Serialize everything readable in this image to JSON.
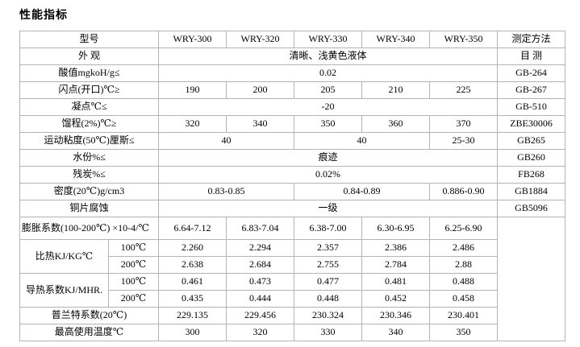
{
  "page": {
    "title": "性能指标"
  },
  "colors": {
    "background": "#ffffff",
    "border": "#b4b4b4",
    "text": "#000000"
  },
  "table": {
    "rows": [
      {
        "name": "header-row",
        "header": true,
        "cells": [
          {
            "t": "型号",
            "cs": 2,
            "n": "col-header-model"
          },
          {
            "t": "WRY-300",
            "n": "col-header-wry-300"
          },
          {
            "t": "WRY-320",
            "n": "col-header-wry-320"
          },
          {
            "t": "WRY-330",
            "n": "col-header-wry-330"
          },
          {
            "t": "WRY-340",
            "n": "col-header-wry-340"
          },
          {
            "t": "WRY-350",
            "n": "col-header-wry-350"
          },
          {
            "t": "测定方法",
            "n": "col-header-test-method"
          }
        ]
      },
      {
        "name": "row-appearance",
        "cells": [
          {
            "t": "外 观",
            "cs": 2,
            "n": "row-label-appearance"
          },
          {
            "t": "清晰、浅黄色液体",
            "cs": 5,
            "n": "value-cell"
          },
          {
            "t": "目 测",
            "n": "method-cell"
          }
        ]
      },
      {
        "name": "row-acid-value",
        "cells": [
          {
            "t": "酸值mgkoH/g≤",
            "cs": 2,
            "n": "row-label-acid-value"
          },
          {
            "t": "0.02",
            "cs": 5,
            "n": "value-cell"
          },
          {
            "t": "GB-264",
            "n": "method-cell"
          }
        ]
      },
      {
        "name": "row-flash-point",
        "cells": [
          {
            "t": "闪点(开口)℃≥",
            "cs": 2,
            "n": "row-label-flash-point"
          },
          {
            "t": "190",
            "n": "value-cell"
          },
          {
            "t": "200",
            "n": "value-cell"
          },
          {
            "t": "205",
            "n": "value-cell"
          },
          {
            "t": "210",
            "n": "value-cell"
          },
          {
            "t": "225",
            "n": "value-cell"
          },
          {
            "t": "GB-267",
            "n": "method-cell"
          }
        ]
      },
      {
        "name": "row-pour-point",
        "cells": [
          {
            "t": "凝点℃≤",
            "cs": 2,
            "n": "row-label-pour-point"
          },
          {
            "t": "-20",
            "cs": 5,
            "n": "value-cell"
          },
          {
            "t": "GB-510",
            "n": "method-cell"
          }
        ]
      },
      {
        "name": "row-distillation-range",
        "cells": [
          {
            "t": "馏程(2%)℃≥",
            "cs": 2,
            "n": "row-label-distillation-range"
          },
          {
            "t": "320",
            "n": "value-cell"
          },
          {
            "t": "340",
            "n": "value-cell"
          },
          {
            "t": "350",
            "n": "value-cell"
          },
          {
            "t": "360",
            "n": "value-cell"
          },
          {
            "t": "370",
            "n": "value-cell"
          },
          {
            "t": "ZBE30006",
            "n": "method-cell"
          }
        ]
      },
      {
        "name": "row-kinematic-viscosity",
        "cells": [
          {
            "t": "运动粘度(50℃)厘斯≤",
            "cs": 2,
            "n": "row-label-kinematic-viscosity"
          },
          {
            "t": "40",
            "cs": 2,
            "n": "value-cell"
          },
          {
            "t": "40",
            "cs": 2,
            "n": "value-cell"
          },
          {
            "t": "25-30",
            "n": "value-cell"
          },
          {
            "t": "GB265",
            "n": "method-cell"
          }
        ]
      },
      {
        "name": "row-water-content",
        "cells": [
          {
            "t": "水份%≤",
            "cs": 2,
            "n": "row-label-water-content"
          },
          {
            "t": "痕迹",
            "cs": 5,
            "n": "value-cell"
          },
          {
            "t": "GB260",
            "n": "method-cell"
          }
        ]
      },
      {
        "name": "row-carbon-residue",
        "cells": [
          {
            "t": "残炭%≤",
            "cs": 2,
            "n": "row-label-carbon-residue"
          },
          {
            "t": "0.02%",
            "cs": 5,
            "n": "value-cell"
          },
          {
            "t": "FB268",
            "n": "method-cell"
          }
        ]
      },
      {
        "name": "row-density",
        "cells": [
          {
            "t": "密度(20℃)g/cm3",
            "cs": 2,
            "n": "row-label-density"
          },
          {
            "t": "0.83-0.85",
            "cs": 2,
            "n": "value-cell"
          },
          {
            "t": "0.84-0.89",
            "cs": 2,
            "n": "value-cell"
          },
          {
            "t": "0.886-0.90",
            "n": "value-cell"
          },
          {
            "t": "GB1884",
            "n": "method-cell"
          }
        ]
      },
      {
        "name": "row-copper-corrosion",
        "cells": [
          {
            "t": "铜片腐蚀",
            "cs": 2,
            "n": "row-label-copper-corrosion"
          },
          {
            "t": "一级",
            "cs": 5,
            "n": "value-cell"
          },
          {
            "t": "GB5096",
            "n": "method-cell"
          }
        ]
      },
      {
        "name": "row-expansion-coefficient",
        "tall": true,
        "cells": [
          {
            "t": "膨胀系数(100-200℃) ×10-4/℃",
            "cs": 2,
            "al": "left",
            "n": "row-label-expansion-coefficient"
          },
          {
            "t": "6.64-7.12",
            "n": "value-cell"
          },
          {
            "t": "6.83-7.04",
            "n": "value-cell"
          },
          {
            "t": "6.38-7.00",
            "n": "value-cell"
          },
          {
            "t": "6.30-6.95",
            "n": "value-cell"
          },
          {
            "t": "6.25-6.90",
            "n": "value-cell"
          },
          {
            "t": "",
            "rs": 7,
            "n": "method-cell-empty"
          }
        ]
      },
      {
        "name": "row-specific-heat-100",
        "cells": [
          {
            "t": "比热KJ/KG℃",
            "rs": 2,
            "n": "row-label-specific-heat"
          },
          {
            "t": "100℃",
            "n": "sub-row-label-100c"
          },
          {
            "t": "2.260",
            "n": "value-cell"
          },
          {
            "t": "2.294",
            "n": "value-cell"
          },
          {
            "t": "2.357",
            "n": "value-cell"
          },
          {
            "t": "2.386",
            "n": "value-cell"
          },
          {
            "t": "2.486",
            "n": "value-cell"
          }
        ]
      },
      {
        "name": "row-specific-heat-200",
        "cells": [
          {
            "t": "200℃",
            "n": "sub-row-label-200c"
          },
          {
            "t": "2.638",
            "n": "value-cell"
          },
          {
            "t": "2.684",
            "n": "value-cell"
          },
          {
            "t": "2.755",
            "n": "value-cell"
          },
          {
            "t": "2.784",
            "n": "value-cell"
          },
          {
            "t": "2.88",
            "n": "value-cell"
          }
        ]
      },
      {
        "name": "row-thermal-conductivity-100",
        "cells": [
          {
            "t": "导热系数KJ/MHR.",
            "rs": 2,
            "n": "row-label-thermal-conductivity"
          },
          {
            "t": "100℃",
            "n": "sub-row-label-100c"
          },
          {
            "t": "0.461",
            "n": "value-cell"
          },
          {
            "t": "0.473",
            "n": "value-cell"
          },
          {
            "t": "0.477",
            "n": "value-cell"
          },
          {
            "t": "0.481",
            "n": "value-cell"
          },
          {
            "t": "0.488",
            "n": "value-cell"
          }
        ]
      },
      {
        "name": "row-thermal-conductivity-200",
        "cells": [
          {
            "t": "200℃",
            "n": "sub-row-label-200c"
          },
          {
            "t": "0.435",
            "n": "value-cell"
          },
          {
            "t": "0.444",
            "n": "value-cell"
          },
          {
            "t": "0.448",
            "n": "value-cell"
          },
          {
            "t": "0.452",
            "n": "value-cell"
          },
          {
            "t": "0.458",
            "n": "value-cell"
          }
        ]
      },
      {
        "name": "row-prandtl-number",
        "cells": [
          {
            "t": "普兰特系数(20℃)",
            "cs": 2,
            "n": "row-label-prandtl-number"
          },
          {
            "t": "229.135",
            "n": "value-cell"
          },
          {
            "t": "229.456",
            "n": "value-cell"
          },
          {
            "t": "230.324",
            "n": "value-cell"
          },
          {
            "t": "230.346",
            "n": "value-cell"
          },
          {
            "t": "230.401",
            "n": "value-cell"
          }
        ]
      },
      {
        "name": "row-max-use-temperature",
        "cells": [
          {
            "t": "最高使用温度℃",
            "cs": 2,
            "n": "row-label-max-use-temperature"
          },
          {
            "t": "300",
            "n": "value-cell"
          },
          {
            "t": "320",
            "n": "value-cell"
          },
          {
            "t": "330",
            "n": "value-cell"
          },
          {
            "t": "340",
            "n": "value-cell"
          },
          {
            "t": "350",
            "n": "value-cell"
          }
        ]
      }
    ]
  }
}
